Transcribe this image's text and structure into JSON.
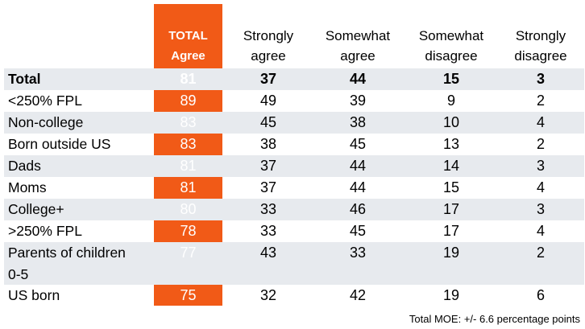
{
  "chart_data": {
    "type": "table",
    "columns": [
      "TOTAL Agree",
      "Strongly agree",
      "Somewhat agree",
      "Somewhat disagree",
      "Strongly disagree"
    ],
    "header_lines": [
      [
        "TOTAL",
        "Agree"
      ],
      [
        "Strongly",
        "agree"
      ],
      [
        "Somewhat",
        "agree"
      ],
      [
        "Somewhat",
        "disagree"
      ],
      [
        "Strongly",
        "disagree"
      ]
    ],
    "rows": [
      {
        "label": "Total",
        "values": [
          81,
          37,
          44,
          15,
          3
        ],
        "bold": true
      },
      {
        "label": "<250% FPL",
        "values": [
          89,
          49,
          39,
          9,
          2
        ]
      },
      {
        "label": "Non-college",
        "values": [
          83,
          45,
          38,
          10,
          4
        ]
      },
      {
        "label": "Born outside US",
        "values": [
          83,
          38,
          45,
          13,
          2
        ]
      },
      {
        "label": "Dads",
        "values": [
          81,
          37,
          44,
          14,
          3
        ]
      },
      {
        "label": "Moms",
        "values": [
          81,
          37,
          44,
          15,
          4
        ]
      },
      {
        "label": "College+",
        "values": [
          80,
          33,
          46,
          17,
          3
        ]
      },
      {
        "label": ">250% FPL",
        "values": [
          78,
          33,
          45,
          17,
          4
        ]
      },
      {
        "label": "Parents of children 0-5",
        "label_lines": [
          "Parents of children",
          "0-5"
        ],
        "values": [
          77,
          43,
          33,
          19,
          2
        ]
      },
      {
        "label": "US born",
        "values": [
          75,
          32,
          42,
          19,
          6
        ]
      }
    ],
    "footnote": "Total MOE: +/- 6.6 percentage points"
  },
  "colors": {
    "total_column": "#f15a17",
    "row_band": "#e7eaee"
  }
}
